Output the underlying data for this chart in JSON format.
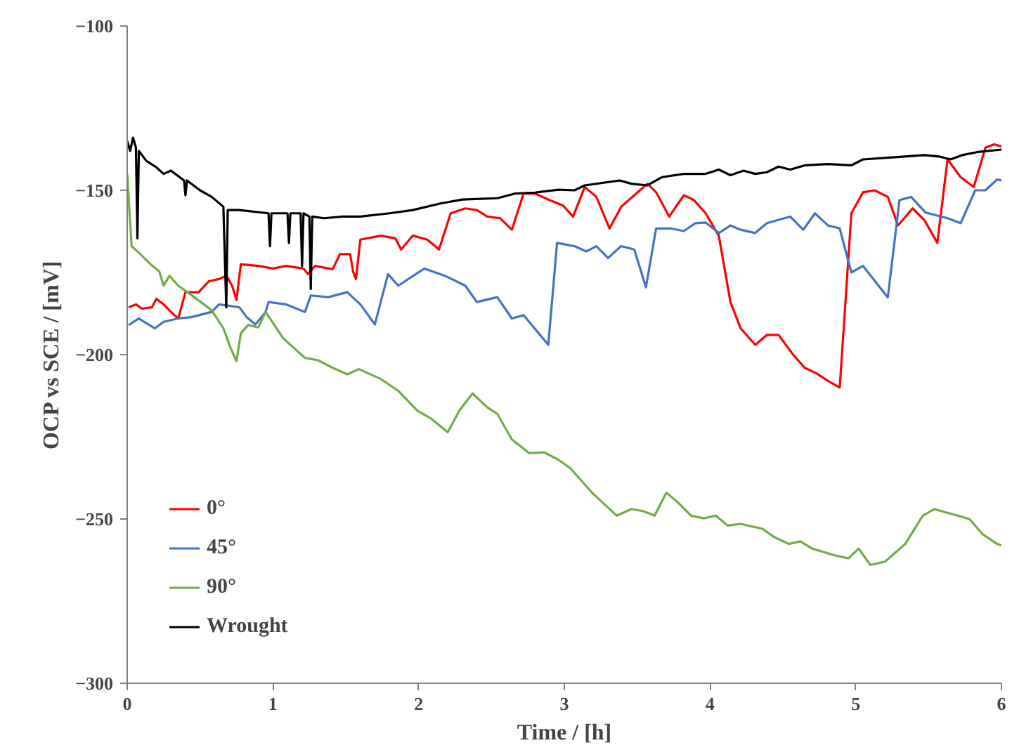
{
  "chart_data": {
    "type": "line",
    "xlabel": "Time / [h]",
    "ylabel": "OCP vs SCE / [mV]",
    "xlim": [
      0,
      6
    ],
    "ylim": [
      -300,
      -100
    ],
    "xticks": [
      0,
      1,
      2,
      3,
      4,
      5,
      6
    ],
    "yticks": [
      -300,
      -250,
      -200,
      -150,
      -100
    ],
    "grid": false,
    "legend": "bottom left",
    "marker": "none",
    "line_style": "solid",
    "series": [
      {
        "name": "0°",
        "color": "#ff0000",
        "x": [
          0.01,
          0.06,
          0.1,
          0.17,
          0.2,
          0.25,
          0.3,
          0.35,
          0.4,
          0.49,
          0.56,
          0.63,
          0.68,
          0.72,
          0.75,
          0.78,
          0.9,
          1.0,
          1.09,
          1.21,
          1.24,
          1.29,
          1.41,
          1.46,
          1.53,
          1.55,
          1.57,
          1.6,
          1.74,
          1.84,
          1.88,
          1.96,
          2.06,
          2.14,
          2.22,
          2.32,
          2.4,
          2.47,
          2.56,
          2.64,
          2.72,
          2.8,
          2.9,
          2.99,
          3.06,
          3.14,
          3.22,
          3.31,
          3.39,
          3.48,
          3.57,
          3.63,
          3.72,
          3.82,
          3.89,
          3.97,
          4.06,
          4.14,
          4.21,
          4.31,
          4.39,
          4.47,
          4.57,
          4.65,
          4.73,
          4.81,
          4.89,
          4.97,
          5.05,
          5.13,
          5.22,
          5.29,
          5.39,
          5.47,
          5.56,
          5.63,
          5.72,
          5.81,
          5.89,
          5.95,
          6.0
        ],
        "values": [
          -185.6,
          -184.7,
          -186,
          -185.6,
          -183,
          -184.7,
          -187,
          -189,
          -181,
          -181,
          -177.7,
          -177,
          -176,
          -179,
          -183.4,
          -172.5,
          -173,
          -173.8,
          -173,
          -173.8,
          -175.5,
          -173,
          -174,
          -169.4,
          -169.4,
          -174.7,
          -177,
          -165,
          -163.8,
          -164.6,
          -168,
          -163.8,
          -165,
          -168,
          -157,
          -155.5,
          -156,
          -158,
          -158.5,
          -162,
          -151,
          -151,
          -153,
          -154.6,
          -158,
          -149,
          -152,
          -161.6,
          -155,
          -151.5,
          -148,
          -150.6,
          -158,
          -151.5,
          -153,
          -157,
          -163.8,
          -184,
          -192,
          -197,
          -194,
          -194,
          -200,
          -204,
          -205.7,
          -208,
          -210,
          -157,
          -150.6,
          -150,
          -152,
          -160.7,
          -155.5,
          -159,
          -166,
          -140.6,
          -146,
          -149,
          -137,
          -136,
          -136.7
        ]
      },
      {
        "name": "45°",
        "color": "#4472c4",
        "x": [
          0.01,
          0.08,
          0.19,
          0.25,
          0.35,
          0.44,
          0.58,
          0.63,
          0.77,
          0.82,
          0.88,
          0.95,
          0.97,
          1.09,
          1.22,
          1.26,
          1.38,
          1.51,
          1.6,
          1.7,
          1.79,
          1.86,
          2.04,
          2.18,
          2.32,
          2.4,
          2.54,
          2.64,
          2.72,
          2.89,
          2.95,
          3.07,
          3.15,
          3.22,
          3.3,
          3.39,
          3.48,
          3.56,
          3.63,
          3.73,
          3.82,
          3.9,
          3.97,
          4.06,
          4.14,
          4.21,
          4.31,
          4.39,
          4.55,
          4.64,
          4.72,
          4.81,
          4.89,
          4.97,
          5.05,
          5.22,
          5.3,
          5.38,
          5.48,
          5.63,
          5.72,
          5.82,
          5.89,
          5.97,
          6.0
        ],
        "values": [
          -191,
          -189,
          -192,
          -190,
          -189,
          -188.6,
          -187,
          -184.7,
          -185.6,
          -188.6,
          -190.8,
          -187,
          -184,
          -184.7,
          -187,
          -182,
          -182.5,
          -181,
          -184.7,
          -190.8,
          -175.5,
          -179,
          -173.8,
          -176,
          -179,
          -184,
          -182.5,
          -189,
          -188,
          -197,
          -166,
          -167,
          -168.6,
          -167,
          -170.6,
          -167,
          -168,
          -179.5,
          -161.6,
          -161.6,
          -162.4,
          -160,
          -159.8,
          -163,
          -160.7,
          -162,
          -163,
          -160,
          -158,
          -162,
          -157,
          -160.7,
          -161.6,
          -175,
          -173,
          -182.6,
          -153,
          -152,
          -156.8,
          -158.5,
          -160,
          -150,
          -150,
          -146.7,
          -147
        ]
      },
      {
        "name": "90°",
        "color": "#70ad47",
        "x": [
          0.0,
          0.03,
          0.08,
          0.16,
          0.22,
          0.25,
          0.29,
          0.35,
          0.46,
          0.58,
          0.66,
          0.71,
          0.75,
          0.78,
          0.83,
          0.9,
          0.95,
          1.07,
          1.22,
          1.31,
          1.41,
          1.51,
          1.59,
          1.74,
          1.86,
          1.99,
          2.09,
          2.2,
          2.28,
          2.37,
          2.47,
          2.54,
          2.64,
          2.76,
          2.86,
          2.96,
          3.04,
          3.19,
          3.36,
          3.46,
          3.54,
          3.62,
          3.7,
          3.78,
          3.87,
          3.96,
          4.04,
          4.12,
          4.21,
          4.36,
          4.44,
          4.54,
          4.62,
          4.7,
          4.85,
          4.95,
          5.02,
          5.1,
          5.2,
          5.34,
          5.46,
          5.54,
          5.78,
          5.87,
          5.97,
          6.0
        ],
        "values": [
          -145,
          -167,
          -169,
          -172.5,
          -174.7,
          -179,
          -176,
          -179,
          -182.5,
          -186.5,
          -192,
          -198,
          -202,
          -193.5,
          -191,
          -191.7,
          -187,
          -195,
          -201,
          -201.7,
          -204,
          -206,
          -204.4,
          -207.4,
          -211,
          -217,
          -219.6,
          -223.6,
          -217,
          -211.8,
          -216,
          -218,
          -225.8,
          -230,
          -229.7,
          -232,
          -234.5,
          -242,
          -249,
          -247,
          -247.6,
          -249,
          -242,
          -245,
          -249,
          -249.8,
          -249,
          -252,
          -251.5,
          -253,
          -255.5,
          -257.6,
          -256.8,
          -259,
          -261,
          -262,
          -259,
          -264,
          -263,
          -257.6,
          -249,
          -247,
          -250,
          -254.6,
          -257.6,
          -258
        ]
      },
      {
        "name": "Wrought",
        "color": "#000000",
        "x": [
          0.0,
          0.02,
          0.04,
          0.06,
          0.07,
          0.08,
          0.13,
          0.2,
          0.25,
          0.3,
          0.39,
          0.4,
          0.41,
          0.5,
          0.58,
          0.66,
          0.68,
          0.69,
          0.77,
          0.97,
          0.98,
          0.99,
          1.1,
          1.11,
          1.12,
          1.19,
          1.2,
          1.21,
          1.25,
          1.26,
          1.27,
          1.35,
          1.48,
          1.6,
          1.8,
          1.96,
          2.15,
          2.3,
          2.54,
          2.66,
          2.8,
          2.96,
          3.07,
          3.14,
          3.38,
          3.46,
          3.57,
          3.67,
          3.82,
          3.97,
          4.06,
          4.14,
          4.23,
          4.31,
          4.39,
          4.47,
          4.55,
          4.65,
          4.81,
          4.97,
          5.05,
          5.25,
          5.47,
          5.57,
          5.65,
          5.73,
          5.83,
          6.0
        ],
        "values": [
          -135,
          -138,
          -134,
          -137,
          -164.6,
          -138,
          -141,
          -143,
          -145,
          -144,
          -147,
          -151.5,
          -147,
          -150,
          -152,
          -155,
          -185.6,
          -156,
          -156,
          -157,
          -167,
          -157,
          -157,
          -166,
          -157,
          -157,
          -173,
          -157,
          -158,
          -180,
          -158,
          -158.5,
          -158,
          -158,
          -157,
          -156,
          -154,
          -152.8,
          -152.4,
          -151,
          -150.7,
          -149.8,
          -150,
          -148.5,
          -147,
          -148,
          -148.5,
          -146,
          -145,
          -145,
          -143.7,
          -145.4,
          -144,
          -145,
          -144.5,
          -142.8,
          -143.7,
          -142.4,
          -142,
          -142.4,
          -140.6,
          -140,
          -139.3,
          -139.7,
          -140.6,
          -139.3,
          -138.4,
          -137.6
        ]
      }
    ]
  }
}
